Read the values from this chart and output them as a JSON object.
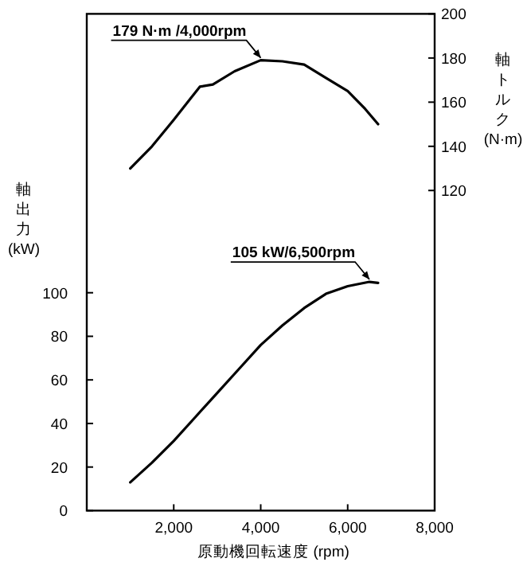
{
  "chart_data": {
    "type": "line",
    "xlabel": "原動機回転速度 (rpm)",
    "ylabel": "軸出力 (kW)",
    "y2label": "軸トルク (N·m)",
    "xlim": [
      0,
      8000
    ],
    "xticks": [
      {
        "value": 2000,
        "label": "2,000"
      },
      {
        "value": 4000,
        "label": "4,000"
      },
      {
        "value": 6000,
        "label": "6,000"
      },
      {
        "value": 8000,
        "label": "8,000"
      }
    ],
    "ylim": [
      0,
      228
    ],
    "yticks": [
      0,
      20,
      40,
      60,
      80,
      100
    ],
    "y2lim": [
      -25,
      200
    ],
    "y2ticks": [
      120,
      140,
      160,
      180,
      200
    ],
    "series": [
      {
        "axis": "y2",
        "color": "#000000",
        "x": [
          1000,
          1500,
          2000,
          2400,
          2600,
          2900,
          3400,
          4000,
          4500,
          5000,
          5500,
          6000,
          6400,
          6700
        ],
        "values": [
          130,
          140,
          152,
          162,
          167,
          168,
          174,
          179,
          178.5,
          177,
          171,
          165,
          157,
          150
        ]
      },
      {
        "axis": "y",
        "color": "#000000",
        "x": [
          1000,
          1500,
          2000,
          2500,
          3000,
          3500,
          4000,
          4500,
          5000,
          5500,
          6000,
          6500,
          6700
        ],
        "values": [
          13,
          22,
          32,
          43,
          54,
          65,
          76,
          85,
          93,
          99.5,
          103,
          105,
          104.5
        ]
      }
    ],
    "annotations": [
      "179 N·m /4,000rpm",
      "105 kW/6,500rpm"
    ]
  }
}
